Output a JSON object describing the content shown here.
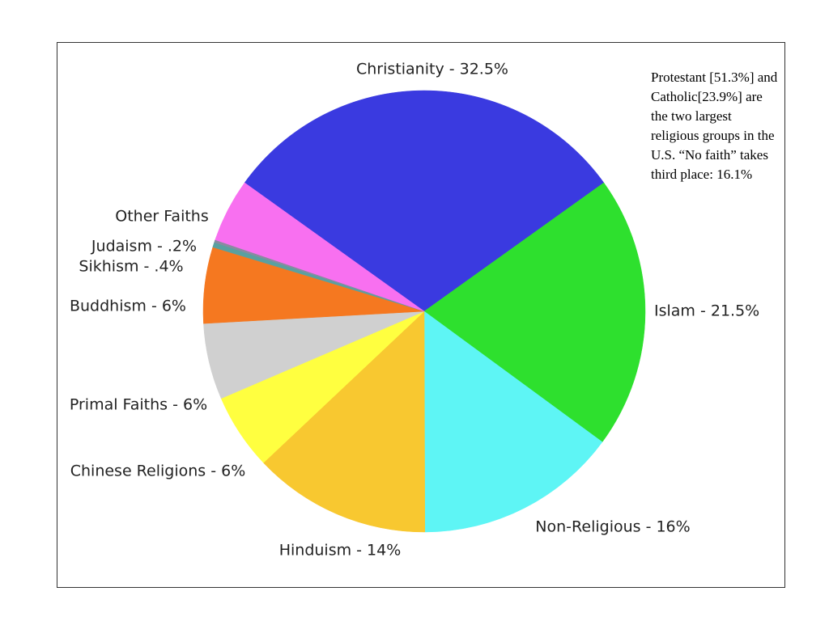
{
  "chart_data": {
    "type": "pie",
    "values": [
      32.5,
      21.5,
      16,
      14,
      6,
      6,
      6,
      0.4,
      0.2,
      5
    ],
    "value_labels": [
      "Christianity - 32.5%",
      "Islam - 21.5%",
      "Non-Religious - 16%",
      "Hinduism - 14%",
      "Chinese Religions - 6%",
      "Primal Faiths - 6%",
      "Buddhism - 6%",
      "Sikhism - .4%",
      "Judaism - .2%",
      "Other Faiths"
    ],
    "colors": [
      "#3a3ae0",
      "#2ee02e",
      "#5ef5f5",
      "#f8c830",
      "#ffff40",
      "#d0d0d0",
      "#f57820",
      "#5aa0a0",
      "#8a8aa0",
      "#f870f0"
    ],
    "annotation": "Protestant [51.3%] and Catholic[23.9%] are the two largest religious groups in the U.S. “No faith” takes third place: 16.1%"
  }
}
